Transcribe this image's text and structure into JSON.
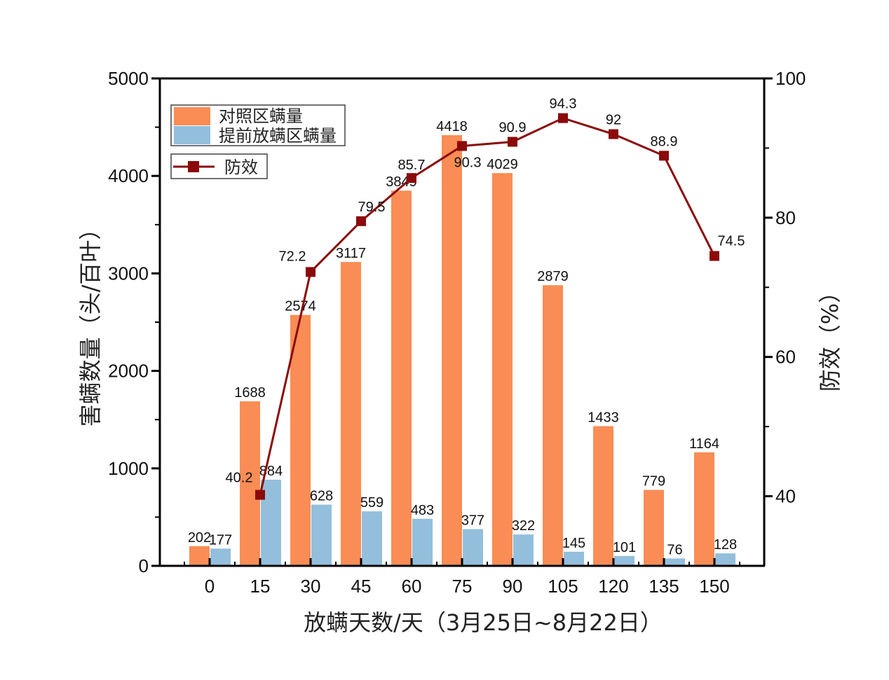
{
  "chart_data": {
    "type": "bar+line",
    "categories": [
      "0",
      "15",
      "30",
      "45",
      "60",
      "75",
      "90",
      "105",
      "120",
      "135",
      "150"
    ],
    "series": [
      {
        "name": "对照区螨量",
        "type": "bar",
        "axis": "left",
        "color": "#F98D55",
        "values": [
          202,
          1688,
          2574,
          3117,
          3849,
          4418,
          4029,
          2879,
          1433,
          779,
          1164
        ]
      },
      {
        "name": "提前放螨区螨量",
        "type": "bar",
        "axis": "left",
        "color": "#93BFDC",
        "values": [
          177,
          884,
          628,
          559,
          483,
          377,
          322,
          145,
          101,
          76,
          128
        ]
      },
      {
        "name": "防效",
        "type": "line",
        "axis": "right",
        "color": "#8B0A0A",
        "values": [
          null,
          40.2,
          72.2,
          79.5,
          85.7,
          90.3,
          90.9,
          94.3,
          92,
          88.9,
          74.5
        ]
      }
    ],
    "xlabel": "放螨天数/天（3月25日~8月22日）",
    "ylabel": "害螨数量（头/百叶）",
    "y2label": "防效（%）",
    "ylim": [
      0,
      5000
    ],
    "yticks": [
      0,
      1000,
      2000,
      3000,
      4000,
      5000
    ],
    "y2lim": [
      30,
      100
    ],
    "y2ticks": [
      40,
      60,
      80,
      100
    ],
    "legend_position": "top-left"
  }
}
